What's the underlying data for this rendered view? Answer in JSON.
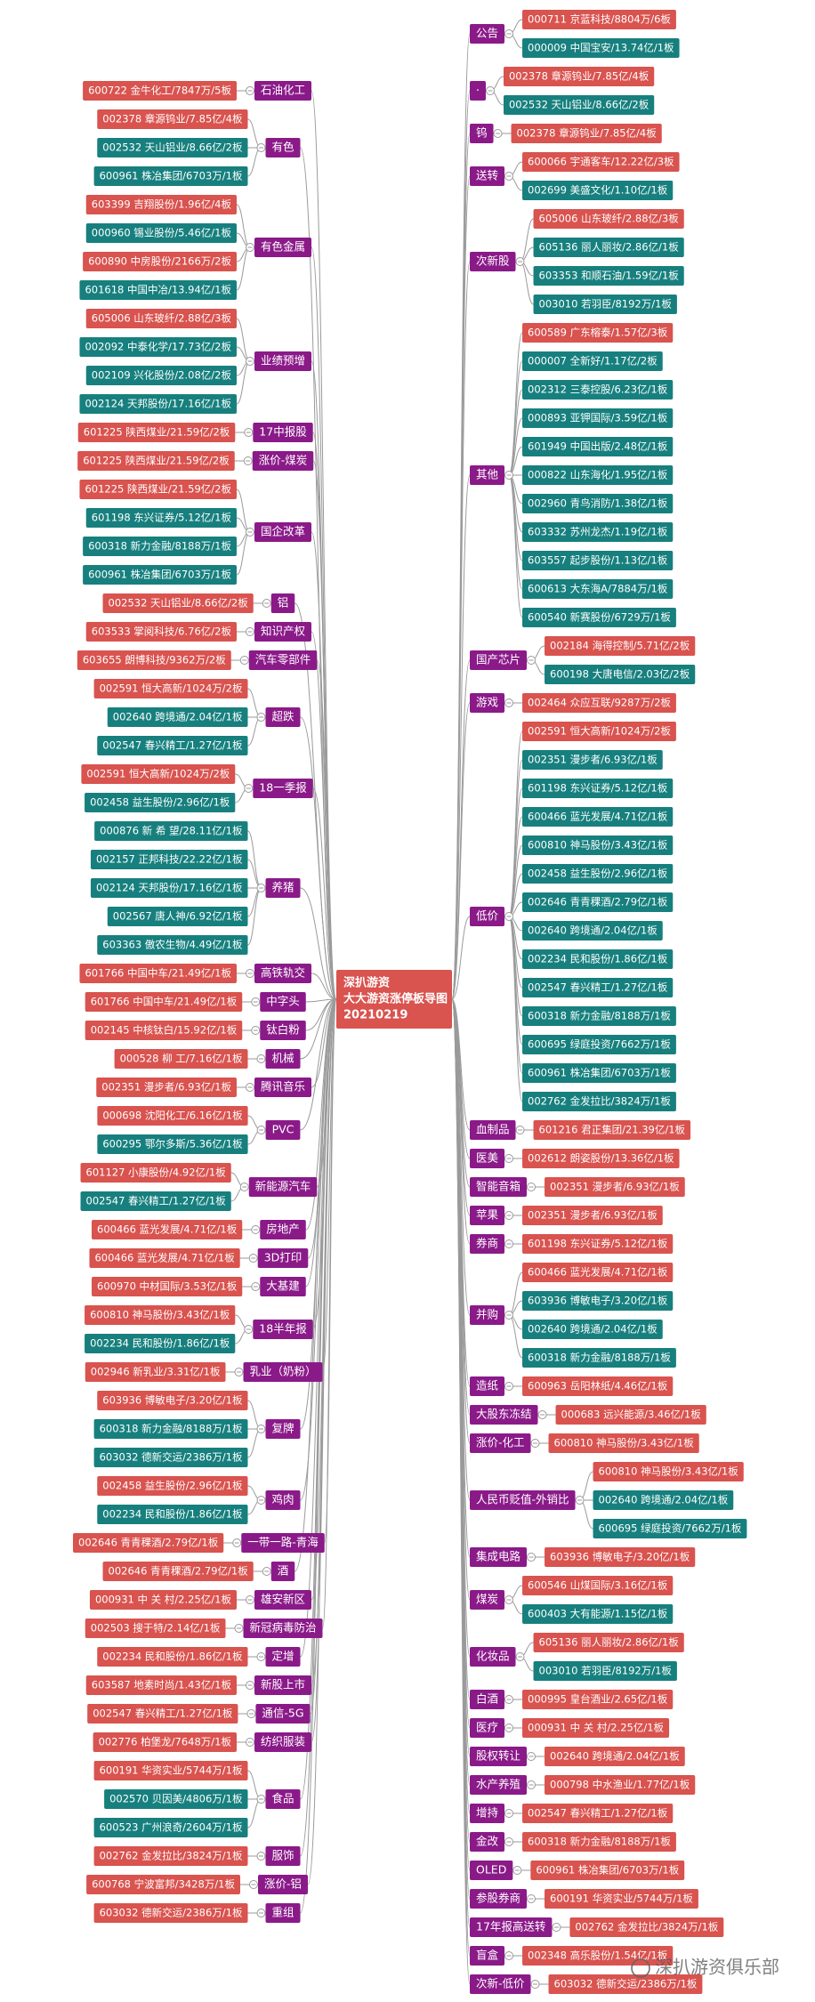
{
  "center": {
    "lines": [
      "深扒游资",
      "大大游资涨停板导图",
      "20210219"
    ]
  },
  "left": [
    {
      "label": "石油化工",
      "leaves": [
        {
          "text": "600722 金牛化工/7847万/5板",
          "color": "#d9534f"
        }
      ]
    },
    {
      "label": "有色",
      "leaves": [
        {
          "text": "002378 章源钨业/7.85亿/4板",
          "color": "#d9534f"
        },
        {
          "text": "002532 天山铝业/8.66亿/2板",
          "color": "#17807e"
        },
        {
          "text": "600961 株冶集团/6703万/1板",
          "color": "#17807e"
        }
      ]
    },
    {
      "label": "有色金属",
      "leaves": [
        {
          "text": "603399 吉翔股份/1.96亿/4板",
          "color": "#d9534f"
        },
        {
          "text": "000960 锡业股份/5.46亿/1板",
          "color": "#17807e"
        },
        {
          "text": "600890 中房股份/2166万/2板",
          "color": "#d9534f"
        },
        {
          "text": "601618 中国中冶/13.94亿/1板",
          "color": "#17807e"
        }
      ]
    },
    {
      "label": "业绩预增",
      "leaves": [
        {
          "text": "605006 山东玻纤/2.88亿/3板",
          "color": "#d9534f"
        },
        {
          "text": "002092 中泰化学/17.73亿/2板",
          "color": "#17807e"
        },
        {
          "text": "002109 兴化股份/2.08亿/2板",
          "color": "#17807e"
        },
        {
          "text": "002124 天邦股份/17.16亿/1板",
          "color": "#17807e"
        }
      ]
    },
    {
      "label": "17中报股",
      "leaves": [
        {
          "text": "601225 陕西煤业/21.59亿/2板",
          "color": "#d9534f"
        }
      ]
    },
    {
      "label": "涨价-煤炭",
      "leaves": [
        {
          "text": "601225 陕西煤业/21.59亿/2板",
          "color": "#d9534f"
        }
      ]
    },
    {
      "label": "国企改革",
      "leaves": [
        {
          "text": "601225 陕西煤业/21.59亿/2板",
          "color": "#d9534f"
        },
        {
          "text": "601198 东兴证券/5.12亿/1板",
          "color": "#17807e"
        },
        {
          "text": "600318 新力金融/8188万/1板",
          "color": "#17807e"
        },
        {
          "text": "600961 株冶集团/6703万/1板",
          "color": "#17807e"
        }
      ]
    },
    {
      "label": "铝",
      "leaves": [
        {
          "text": "002532 天山铝业/8.66亿/2板",
          "color": "#d9534f"
        }
      ]
    },
    {
      "label": "知识产权",
      "leaves": [
        {
          "text": "603533 掌阅科技/6.76亿/2板",
          "color": "#d9534f"
        }
      ]
    },
    {
      "label": "汽车零部件",
      "leaves": [
        {
          "text": "603655 朗博科技/9362万/2板",
          "color": "#d9534f"
        }
      ]
    },
    {
      "label": "超跌",
      "leaves": [
        {
          "text": "002591 恒大高新/1024万/2板",
          "color": "#d9534f"
        },
        {
          "text": "002640 跨境通/2.04亿/1板",
          "color": "#17807e"
        },
        {
          "text": "002547 春兴精工/1.27亿/1板",
          "color": "#17807e"
        }
      ]
    },
    {
      "label": "18一季报",
      "leaves": [
        {
          "text": "002591 恒大高新/1024万/2板",
          "color": "#d9534f"
        },
        {
          "text": "002458 益生股份/2.96亿/1板",
          "color": "#17807e"
        }
      ]
    },
    {
      "label": "养猪",
      "leaves": [
        {
          "text": "000876 新 希 望/28.11亿/1板",
          "color": "#17807e"
        },
        {
          "text": "002157 正邦科技/22.22亿/1板",
          "color": "#17807e"
        },
        {
          "text": "002124 天邦股份/17.16亿/1板",
          "color": "#17807e"
        },
        {
          "text": "002567 唐人神/6.92亿/1板",
          "color": "#17807e"
        },
        {
          "text": "603363 傲农生物/4.49亿/1板",
          "color": "#17807e"
        }
      ]
    },
    {
      "label": "高铁轨交",
      "leaves": [
        {
          "text": "601766 中国中车/21.49亿/1板",
          "color": "#d9534f"
        }
      ]
    },
    {
      "label": "中字头",
      "leaves": [
        {
          "text": "601766 中国中车/21.49亿/1板",
          "color": "#d9534f"
        }
      ]
    },
    {
      "label": "钛白粉",
      "leaves": [
        {
          "text": "002145 中核钛白/15.92亿/1板",
          "color": "#d9534f"
        }
      ]
    },
    {
      "label": "机械",
      "leaves": [
        {
          "text": "000528 柳 工/7.16亿/1板",
          "color": "#d9534f"
        }
      ]
    },
    {
      "label": "腾讯音乐",
      "leaves": [
        {
          "text": "002351 漫步者/6.93亿/1板",
          "color": "#d9534f"
        }
      ]
    },
    {
      "label": "PVC",
      "leaves": [
        {
          "text": "000698 沈阳化工/6.16亿/1板",
          "color": "#d9534f"
        },
        {
          "text": "600295 鄂尔多斯/5.36亿/1板",
          "color": "#17807e"
        }
      ]
    },
    {
      "label": "新能源汽车",
      "leaves": [
        {
          "text": "601127 小康股份/4.92亿/1板",
          "color": "#d9534f"
        },
        {
          "text": "002547 春兴精工/1.27亿/1板",
          "color": "#17807e"
        }
      ]
    },
    {
      "label": "房地产",
      "leaves": [
        {
          "text": "600466 蓝光发展/4.71亿/1板",
          "color": "#d9534f"
        }
      ]
    },
    {
      "label": "3D打印",
      "leaves": [
        {
          "text": "600466 蓝光发展/4.71亿/1板",
          "color": "#d9534f"
        }
      ]
    },
    {
      "label": "大基建",
      "leaves": [
        {
          "text": "600970 中材国际/3.53亿/1板",
          "color": "#d9534f"
        }
      ]
    },
    {
      "label": "18半年报",
      "leaves": [
        {
          "text": "600810 神马股份/3.43亿/1板",
          "color": "#d9534f"
        },
        {
          "text": "002234 民和股份/1.86亿/1板",
          "color": "#17807e"
        }
      ]
    },
    {
      "label": "乳业（奶粉）",
      "leaves": [
        {
          "text": "002946 新乳业/3.31亿/1板",
          "color": "#d9534f"
        }
      ]
    },
    {
      "label": "复牌",
      "leaves": [
        {
          "text": "603936 博敏电子/3.20亿/1板",
          "color": "#d9534f"
        },
        {
          "text": "600318 新力金融/8188万/1板",
          "color": "#17807e"
        },
        {
          "text": "603032 德新交运/2386万/1板",
          "color": "#17807e"
        }
      ]
    },
    {
      "label": "鸡肉",
      "leaves": [
        {
          "text": "002458 益生股份/2.96亿/1板",
          "color": "#d9534f"
        },
        {
          "text": "002234 民和股份/1.86亿/1板",
          "color": "#17807e"
        }
      ]
    },
    {
      "label": "一带一路-青海",
      "leaves": [
        {
          "text": "002646 青青稞酒/2.79亿/1板",
          "color": "#d9534f"
        }
      ]
    },
    {
      "label": "酒",
      "leaves": [
        {
          "text": "002646 青青稞酒/2.79亿/1板",
          "color": "#d9534f"
        }
      ]
    },
    {
      "label": "雄安新区",
      "leaves": [
        {
          "text": "000931 中 关 村/2.25亿/1板",
          "color": "#d9534f"
        }
      ]
    },
    {
      "label": "新冠病毒防治",
      "leaves": [
        {
          "text": "002503 搜于特/2.14亿/1板",
          "color": "#d9534f"
        }
      ]
    },
    {
      "label": "定增",
      "leaves": [
        {
          "text": "002234 民和股份/1.86亿/1板",
          "color": "#d9534f"
        }
      ]
    },
    {
      "label": "新股上市",
      "leaves": [
        {
          "text": "603587 地素时尚/1.43亿/1板",
          "color": "#d9534f"
        }
      ]
    },
    {
      "label": "通信-5G",
      "leaves": [
        {
          "text": "002547 春兴精工/1.27亿/1板",
          "color": "#d9534f"
        }
      ]
    },
    {
      "label": "纺织服装",
      "leaves": [
        {
          "text": "002776 柏堡龙/7648万/1板",
          "color": "#d9534f"
        }
      ]
    },
    {
      "label": "食品",
      "leaves": [
        {
          "text": "600191 华资实业/5744万/1板",
          "color": "#d9534f"
        },
        {
          "text": "002570 贝因美/4806万/1板",
          "color": "#17807e"
        },
        {
          "text": "600523 广州浪奇/2604万/1板",
          "color": "#17807e"
        }
      ]
    },
    {
      "label": "服饰",
      "leaves": [
        {
          "text": "002762 金发拉比/3824万/1板",
          "color": "#d9534f"
        }
      ]
    },
    {
      "label": "涨价-铝",
      "leaves": [
        {
          "text": "600768 宁波富邦/3428万/1板",
          "color": "#d9534f"
        }
      ]
    },
    {
      "label": "重组",
      "leaves": [
        {
          "text": "603032 德新交运/2386万/1板",
          "color": "#d9534f"
        }
      ]
    }
  ],
  "right": [
    {
      "label": "公告",
      "leaves": [
        {
          "text": "000711 京蓝科技/8804万/6板",
          "color": "#d9534f"
        },
        {
          "text": "000009 中国宝安/13.74亿/1板",
          "color": "#17807e"
        }
      ]
    },
    {
      "label": "·",
      "leaves": [
        {
          "text": "002378 章源钨业/7.85亿/4板",
          "color": "#d9534f"
        },
        {
          "text": "002532 天山铝业/8.66亿/2板",
          "color": "#17807e"
        }
      ]
    },
    {
      "label": "钨",
      "leaves": [
        {
          "text": "002378 章源钨业/7.85亿/4板",
          "color": "#d9534f"
        }
      ]
    },
    {
      "label": "送转",
      "leaves": [
        {
          "text": "600066 宇通客车/12.22亿/3板",
          "color": "#d9534f"
        },
        {
          "text": "002699 美盛文化/1.10亿/1板",
          "color": "#17807e"
        }
      ]
    },
    {
      "label": "次新股",
      "leaves": [
        {
          "text": "605006 山东玻纤/2.88亿/3板",
          "color": "#d9534f"
        },
        {
          "text": "605136 丽人丽妆/2.86亿/1板",
          "color": "#17807e"
        },
        {
          "text": "603353 和顺石油/1.59亿/1板",
          "color": "#17807e"
        },
        {
          "text": "003010 若羽臣/8192万/1板",
          "color": "#17807e"
        }
      ]
    },
    {
      "label": "其他",
      "leaves": [
        {
          "text": "600589 广东榕泰/1.57亿/3板",
          "color": "#d9534f"
        },
        {
          "text": "000007 全新好/1.17亿/2板",
          "color": "#17807e"
        },
        {
          "text": "002312 三泰控股/6.23亿/1板",
          "color": "#17807e"
        },
        {
          "text": "000893 亚钾国际/3.59亿/1板",
          "color": "#17807e"
        },
        {
          "text": "601949 中国出版/2.48亿/1板",
          "color": "#17807e"
        },
        {
          "text": "000822 山东海化/1.95亿/1板",
          "color": "#17807e"
        },
        {
          "text": "002960 青鸟消防/1.38亿/1板",
          "color": "#17807e"
        },
        {
          "text": "603332 苏州龙杰/1.19亿/1板",
          "color": "#17807e"
        },
        {
          "text": "603557 起步股份/1.13亿/1板",
          "color": "#17807e"
        },
        {
          "text": "600613 大东海A/7884万/1板",
          "color": "#17807e"
        },
        {
          "text": "600540 新赛股份/6729万/1板",
          "color": "#17807e"
        }
      ]
    },
    {
      "label": "国产芯片",
      "leaves": [
        {
          "text": "002184 海得控制/5.71亿/2板",
          "color": "#d9534f"
        },
        {
          "text": "600198 大唐电信/2.03亿/2板",
          "color": "#17807e"
        }
      ]
    },
    {
      "label": "游戏",
      "leaves": [
        {
          "text": "002464 众应互联/9287万/2板",
          "color": "#d9534f"
        }
      ]
    },
    {
      "label": "低价",
      "leaves": [
        {
          "text": "002591 恒大高新/1024万/2板",
          "color": "#d9534f"
        },
        {
          "text": "002351 漫步者/6.93亿/1板",
          "color": "#17807e"
        },
        {
          "text": "601198 东兴证券/5.12亿/1板",
          "color": "#17807e"
        },
        {
          "text": "600466 蓝光发展/4.71亿/1板",
          "color": "#17807e"
        },
        {
          "text": "600810 神马股份/3.43亿/1板",
          "color": "#17807e"
        },
        {
          "text": "002458 益生股份/2.96亿/1板",
          "color": "#17807e"
        },
        {
          "text": "002646 青青稞酒/2.79亿/1板",
          "color": "#17807e"
        },
        {
          "text": "002640 跨境通/2.04亿/1板",
          "color": "#17807e"
        },
        {
          "text": "002234 民和股份/1.86亿/1板",
          "color": "#17807e"
        },
        {
          "text": "002547 春兴精工/1.27亿/1板",
          "color": "#17807e"
        },
        {
          "text": "600318 新力金融/8188万/1板",
          "color": "#17807e"
        },
        {
          "text": "600695 绿庭投资/7662万/1板",
          "color": "#17807e"
        },
        {
          "text": "600961 株冶集团/6703万/1板",
          "color": "#17807e"
        },
        {
          "text": "002762 金发拉比/3824万/1板",
          "color": "#17807e"
        }
      ]
    },
    {
      "label": "血制品",
      "leaves": [
        {
          "text": "601216 君正集团/21.39亿/1板",
          "color": "#d9534f"
        }
      ]
    },
    {
      "label": "医美",
      "leaves": [
        {
          "text": "002612 朗姿股份/13.36亿/1板",
          "color": "#d9534f"
        }
      ]
    },
    {
      "label": "智能音箱",
      "leaves": [
        {
          "text": "002351 漫步者/6.93亿/1板",
          "color": "#d9534f"
        }
      ]
    },
    {
      "label": "苹果",
      "leaves": [
        {
          "text": "002351 漫步者/6.93亿/1板",
          "color": "#d9534f"
        }
      ]
    },
    {
      "label": "券商",
      "leaves": [
        {
          "text": "601198 东兴证券/5.12亿/1板",
          "color": "#d9534f"
        }
      ]
    },
    {
      "label": "并购",
      "leaves": [
        {
          "text": "600466 蓝光发展/4.71亿/1板",
          "color": "#d9534f"
        },
        {
          "text": "603936 博敏电子/3.20亿/1板",
          "color": "#17807e"
        },
        {
          "text": "002640 跨境通/2.04亿/1板",
          "color": "#17807e"
        },
        {
          "text": "600318 新力金融/8188万/1板",
          "color": "#17807e"
        }
      ]
    },
    {
      "label": "造纸",
      "leaves": [
        {
          "text": "600963 岳阳林纸/4.46亿/1板",
          "color": "#d9534f"
        }
      ]
    },
    {
      "label": "大股东冻结",
      "leaves": [
        {
          "text": "000683 远兴能源/3.46亿/1板",
          "color": "#d9534f"
        }
      ]
    },
    {
      "label": "涨价-化工",
      "leaves": [
        {
          "text": "600810 神马股份/3.43亿/1板",
          "color": "#d9534f"
        }
      ]
    },
    {
      "label": "人民币贬值-外销比",
      "leaves": [
        {
          "text": "600810 神马股份/3.43亿/1板",
          "color": "#d9534f"
        },
        {
          "text": "002640 跨境通/2.04亿/1板",
          "color": "#17807e"
        },
        {
          "text": "600695 绿庭投资/7662万/1板",
          "color": "#17807e"
        }
      ]
    },
    {
      "label": "集成电路",
      "leaves": [
        {
          "text": "603936 博敏电子/3.20亿/1板",
          "color": "#d9534f"
        }
      ]
    },
    {
      "label": "煤炭",
      "leaves": [
        {
          "text": "600546 山煤国际/3.16亿/1板",
          "color": "#d9534f"
        },
        {
          "text": "600403 大有能源/1.15亿/1板",
          "color": "#17807e"
        }
      ]
    },
    {
      "label": "化妆品",
      "leaves": [
        {
          "text": "605136 丽人丽妆/2.86亿/1板",
          "color": "#d9534f"
        },
        {
          "text": "003010 若羽臣/8192万/1板",
          "color": "#17807e"
        }
      ]
    },
    {
      "label": "白酒",
      "leaves": [
        {
          "text": "000995 皇台酒业/2.65亿/1板",
          "color": "#d9534f"
        }
      ]
    },
    {
      "label": "医疗",
      "leaves": [
        {
          "text": "000931 中 关 村/2.25亿/1板",
          "color": "#d9534f"
        }
      ]
    },
    {
      "label": "股权转让",
      "leaves": [
        {
          "text": "002640 跨境通/2.04亿/1板",
          "color": "#d9534f"
        }
      ]
    },
    {
      "label": "水产养殖",
      "leaves": [
        {
          "text": "000798 中水渔业/1.77亿/1板",
          "color": "#d9534f"
        }
      ]
    },
    {
      "label": "增持",
      "leaves": [
        {
          "text": "002547 春兴精工/1.27亿/1板",
          "color": "#d9534f"
        }
      ]
    },
    {
      "label": "金改",
      "leaves": [
        {
          "text": "600318 新力金融/8188万/1板",
          "color": "#d9534f"
        }
      ]
    },
    {
      "label": "OLED",
      "leaves": [
        {
          "text": "600961 株冶集团/6703万/1板",
          "color": "#d9534f"
        }
      ]
    },
    {
      "label": "参股券商",
      "leaves": [
        {
          "text": "600191 华资实业/5744万/1板",
          "color": "#d9534f"
        }
      ]
    },
    {
      "label": "17年报高送转",
      "leaves": [
        {
          "text": "002762 金发拉比/3824万/1板",
          "color": "#d9534f"
        }
      ]
    },
    {
      "label": "盲盒",
      "leaves": [
        {
          "text": "002348 高乐股份/1.54亿/1板",
          "color": "#d9534f"
        }
      ]
    },
    {
      "label": "次新-低价",
      "leaves": [
        {
          "text": "603032 德新交运/2386万/1板",
          "color": "#d9534f"
        }
      ]
    }
  ],
  "watermark": "深扒游资俱乐部"
}
